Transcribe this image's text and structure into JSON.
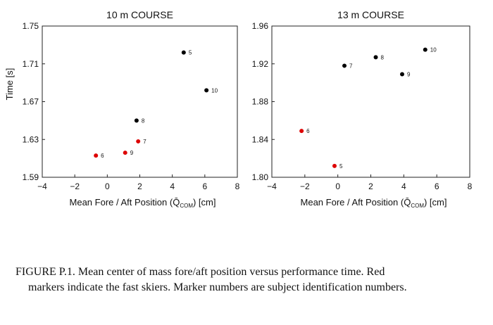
{
  "chart_data": [
    {
      "type": "scatter",
      "title": "10 m COURSE",
      "xlabel": "Mean Fore / Aft Position (Q̄",
      "xlabel_sub": "COM",
      "xlabel_suffix": ") [cm]",
      "ylabel": "Time [s]",
      "xlim": [
        -4,
        8
      ],
      "ylim": [
        1.59,
        1.75
      ],
      "xticks": [
        -4,
        -2,
        0,
        2,
        4,
        6,
        8
      ],
      "yticks": [
        1.59,
        1.63,
        1.67,
        1.71,
        1.75
      ],
      "ytick_labels": [
        "1.59",
        "1.63",
        "1.67",
        "1.71",
        "1.75"
      ],
      "grid": false,
      "points": [
        {
          "x": 4.7,
          "y": 1.722,
          "label": "5",
          "color": "#000000"
        },
        {
          "x": 6.1,
          "y": 1.682,
          "label": "10",
          "color": "#000000"
        },
        {
          "x": 1.8,
          "y": 1.65,
          "label": "8",
          "color": "#000000"
        },
        {
          "x": 1.9,
          "y": 1.628,
          "label": "7",
          "color": "#dd0000"
        },
        {
          "x": 1.1,
          "y": 1.616,
          "label": "9",
          "color": "#dd0000"
        },
        {
          "x": -0.7,
          "y": 1.613,
          "label": "6",
          "color": "#dd0000"
        }
      ]
    },
    {
      "type": "scatter",
      "title": "13 m COURSE",
      "xlabel": "Mean Fore / Aft Position (Q̄",
      "xlabel_sub": "COM",
      "xlabel_suffix": ") [cm]",
      "ylabel": "",
      "xlim": [
        -4,
        8
      ],
      "ylim": [
        1.8,
        1.96
      ],
      "xticks": [
        -4,
        -2,
        0,
        2,
        4,
        6,
        8
      ],
      "yticks": [
        1.8,
        1.84,
        1.88,
        1.92,
        1.96
      ],
      "ytick_labels": [
        "1.80",
        "1.84",
        "1.88",
        "1.92",
        "1.96"
      ],
      "grid": false,
      "points": [
        {
          "x": 5.3,
          "y": 1.935,
          "label": "10",
          "color": "#000000"
        },
        {
          "x": 2.3,
          "y": 1.927,
          "label": "8",
          "color": "#000000"
        },
        {
          "x": 0.4,
          "y": 1.918,
          "label": "7",
          "color": "#000000"
        },
        {
          "x": 3.9,
          "y": 1.909,
          "label": "9",
          "color": "#000000"
        },
        {
          "x": -2.2,
          "y": 1.849,
          "label": "6",
          "color": "#dd0000"
        },
        {
          "x": -0.2,
          "y": 1.812,
          "label": "5",
          "color": "#dd0000"
        }
      ]
    }
  ],
  "caption": {
    "first_line": "FIGURE P.1. Mean center of mass fore/aft position versus performance time. Red",
    "rest": "markers indicate the fast skiers. Marker numbers are subject identification numbers."
  }
}
